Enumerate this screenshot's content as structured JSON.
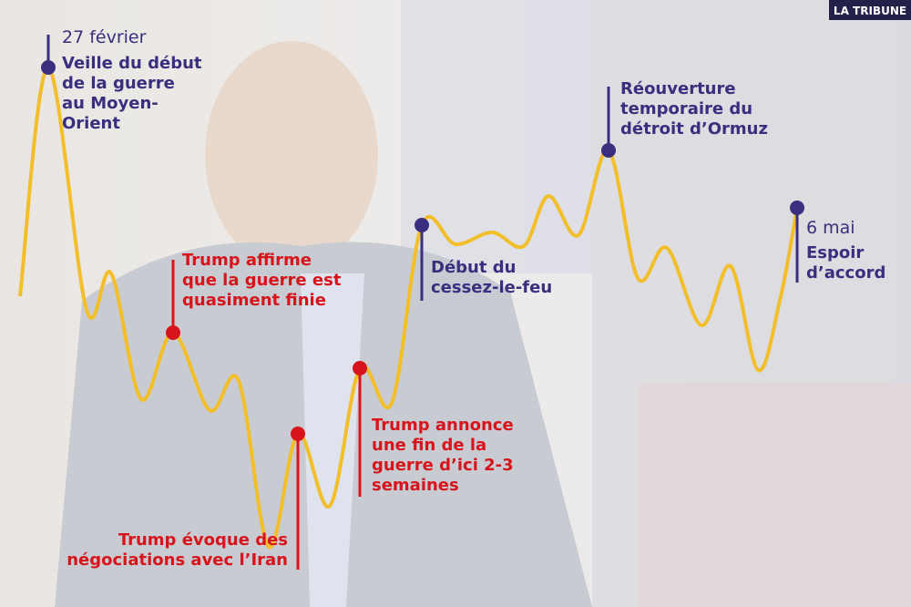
{
  "brand": "LA TRIBUNE",
  "annotations": [
    {
      "date": "27 février",
      "lines": [
        "Veille du début",
        "de la guerre",
        "au Moyen-",
        "Orient"
      ]
    },
    {
      "lines": [
        "Trump affirme",
        "que la guerre est",
        "quasiment finie"
      ]
    },
    {
      "lines": [
        "Trump évoque des",
        "négociations avec l’Iran"
      ]
    },
    {
      "lines": [
        "Trump annonce",
        "une fin de la",
        "guerre d’ici 2-3",
        "semaines"
      ]
    },
    {
      "lines": [
        "Début du",
        "cessez-le-feu"
      ]
    },
    {
      "lines": [
        "Réouverture",
        "temporaire du",
        "détroit d’Ormuz"
      ]
    },
    {
      "date": "6 mai",
      "lines": [
        "Espoir",
        "d’accord"
      ]
    }
  ]
}
